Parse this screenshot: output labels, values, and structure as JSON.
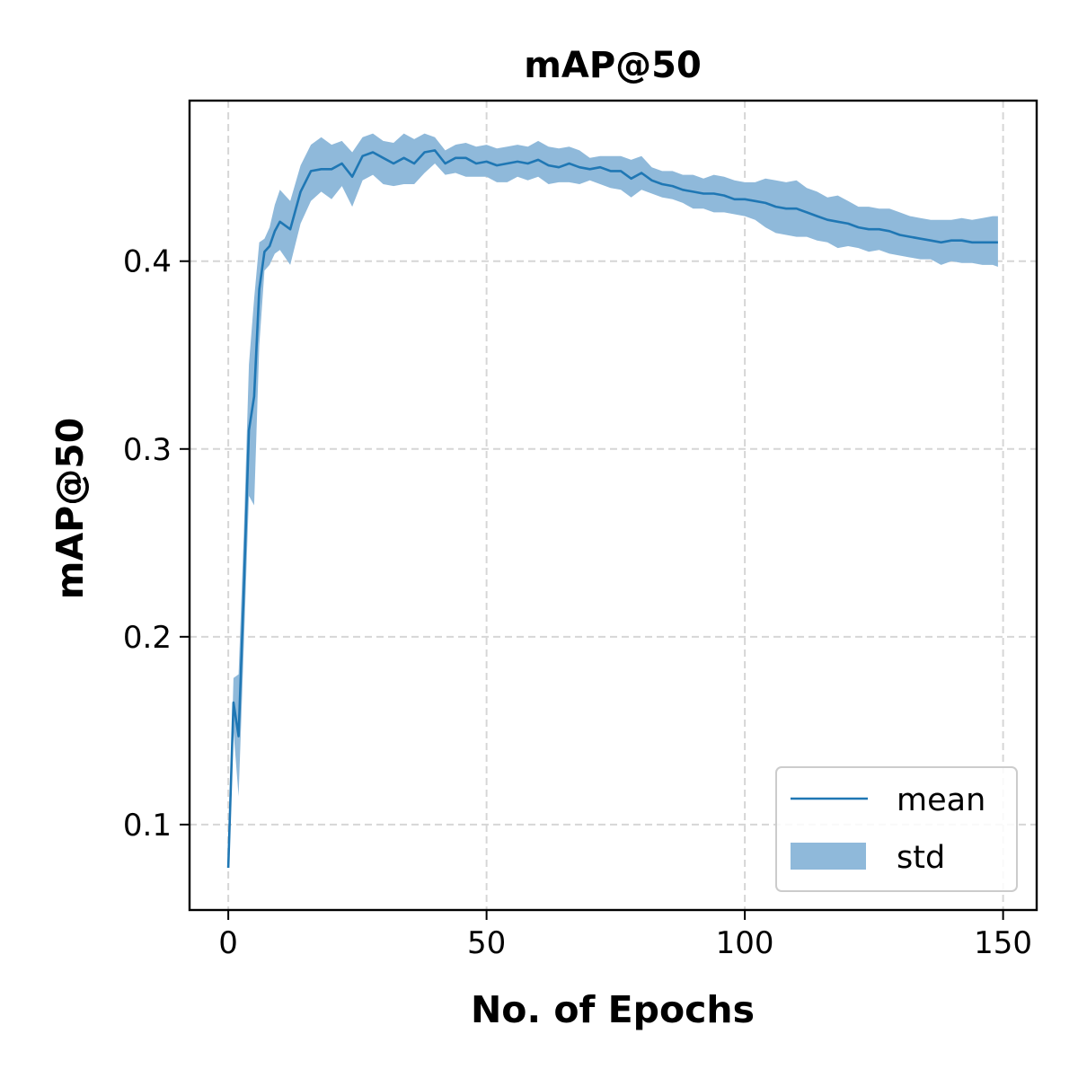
{
  "chart_data": {
    "type": "line",
    "title": "mAP@50",
    "xlabel": "No. of Epochs",
    "ylabel": "mAP@50",
    "xlim": [
      -7.5,
      156.5
    ],
    "ylim": [
      0.0545,
      0.4855
    ],
    "xticks": [
      0,
      50,
      100,
      150
    ],
    "xtick_labels": [
      "0",
      "50",
      "100",
      "150"
    ],
    "yticks": [
      0.1,
      0.2,
      0.3,
      0.4
    ],
    "ytick_labels": [
      "0.1",
      "0.2",
      "0.3",
      "0.4"
    ],
    "grid": true,
    "legend_position": "lower-right",
    "legend": [
      {
        "label": "mean",
        "kind": "line"
      },
      {
        "label": "std",
        "kind": "band"
      }
    ],
    "colors": {
      "mean": "#1f77b4",
      "std": "#8fb9da",
      "grid": "#d6d6d6"
    },
    "series": [
      {
        "name": "mean",
        "x": [
          0,
          1,
          2,
          3,
          4,
          5,
          6,
          7,
          8,
          9,
          10,
          12,
          14,
          16,
          18,
          20,
          22,
          24,
          26,
          28,
          30,
          32,
          34,
          36,
          38,
          40,
          42,
          44,
          46,
          48,
          50,
          52,
          54,
          56,
          58,
          60,
          62,
          64,
          66,
          68,
          70,
          72,
          74,
          76,
          78,
          80,
          82,
          84,
          86,
          88,
          90,
          92,
          94,
          96,
          98,
          100,
          102,
          104,
          106,
          108,
          110,
          112,
          114,
          116,
          118,
          120,
          122,
          124,
          126,
          128,
          130,
          132,
          134,
          136,
          138,
          140,
          142,
          144,
          146,
          148,
          149
        ],
        "y": [
          0.077,
          0.165,
          0.147,
          0.225,
          0.31,
          0.328,
          0.385,
          0.405,
          0.408,
          0.416,
          0.421,
          0.417,
          0.437,
          0.448,
          0.449,
          0.449,
          0.452,
          0.445,
          0.456,
          0.458,
          0.455,
          0.452,
          0.455,
          0.452,
          0.458,
          0.459,
          0.452,
          0.455,
          0.455,
          0.452,
          0.453,
          0.451,
          0.452,
          0.453,
          0.452,
          0.454,
          0.451,
          0.45,
          0.452,
          0.45,
          0.449,
          0.45,
          0.448,
          0.448,
          0.444,
          0.447,
          0.443,
          0.441,
          0.44,
          0.438,
          0.437,
          0.436,
          0.436,
          0.435,
          0.433,
          0.433,
          0.432,
          0.431,
          0.429,
          0.428,
          0.428,
          0.426,
          0.424,
          0.422,
          0.421,
          0.42,
          0.418,
          0.417,
          0.417,
          0.416,
          0.414,
          0.413,
          0.412,
          0.411,
          0.41,
          0.411,
          0.411,
          0.41,
          0.41,
          0.41,
          0.41
        ]
      },
      {
        "name": "std",
        "x": [
          0,
          1,
          2,
          3,
          4,
          5,
          6,
          7,
          8,
          9,
          10,
          12,
          14,
          16,
          18,
          20,
          22,
          24,
          26,
          28,
          30,
          32,
          34,
          36,
          38,
          40,
          42,
          44,
          46,
          48,
          50,
          52,
          54,
          56,
          58,
          60,
          62,
          64,
          66,
          68,
          70,
          72,
          74,
          76,
          78,
          80,
          82,
          84,
          86,
          88,
          90,
          92,
          94,
          96,
          98,
          100,
          102,
          104,
          106,
          108,
          110,
          112,
          114,
          116,
          118,
          120,
          122,
          124,
          126,
          128,
          130,
          132,
          134,
          136,
          138,
          140,
          142,
          144,
          146,
          148,
          149
        ],
        "lower": [
          0.076,
          0.15,
          0.115,
          0.195,
          0.275,
          0.27,
          0.355,
          0.395,
          0.398,
          0.404,
          0.406,
          0.398,
          0.42,
          0.432,
          0.437,
          0.433,
          0.44,
          0.429,
          0.443,
          0.446,
          0.441,
          0.44,
          0.441,
          0.441,
          0.447,
          0.452,
          0.446,
          0.447,
          0.445,
          0.445,
          0.445,
          0.442,
          0.442,
          0.445,
          0.443,
          0.445,
          0.441,
          0.442,
          0.442,
          0.441,
          0.443,
          0.441,
          0.439,
          0.438,
          0.434,
          0.438,
          0.436,
          0.434,
          0.433,
          0.431,
          0.428,
          0.428,
          0.426,
          0.426,
          0.425,
          0.424,
          0.422,
          0.418,
          0.415,
          0.414,
          0.413,
          0.413,
          0.411,
          0.41,
          0.407,
          0.408,
          0.407,
          0.405,
          0.406,
          0.404,
          0.403,
          0.402,
          0.401,
          0.401,
          0.398,
          0.4,
          0.399,
          0.399,
          0.398,
          0.398,
          0.397
        ]
      },
      {
        "name": "std_upper",
        "x": [
          0,
          1,
          2,
          3,
          4,
          5,
          6,
          7,
          8,
          9,
          10,
          12,
          14,
          16,
          18,
          20,
          22,
          24,
          26,
          28,
          30,
          32,
          34,
          36,
          38,
          40,
          42,
          44,
          46,
          48,
          50,
          52,
          54,
          56,
          58,
          60,
          62,
          64,
          66,
          68,
          70,
          72,
          74,
          76,
          78,
          80,
          82,
          84,
          86,
          88,
          90,
          92,
          94,
          96,
          98,
          100,
          102,
          104,
          106,
          108,
          110,
          112,
          114,
          116,
          118,
          120,
          122,
          124,
          126,
          128,
          130,
          132,
          134,
          136,
          138,
          140,
          142,
          144,
          146,
          148,
          149
        ],
        "upper": [
          0.078,
          0.178,
          0.18,
          0.255,
          0.345,
          0.38,
          0.41,
          0.412,
          0.418,
          0.43,
          0.438,
          0.432,
          0.451,
          0.462,
          0.466,
          0.462,
          0.464,
          0.458,
          0.466,
          0.468,
          0.464,
          0.463,
          0.468,
          0.465,
          0.468,
          0.466,
          0.459,
          0.462,
          0.463,
          0.461,
          0.462,
          0.46,
          0.461,
          0.462,
          0.461,
          0.464,
          0.461,
          0.46,
          0.461,
          0.459,
          0.455,
          0.456,
          0.456,
          0.456,
          0.454,
          0.456,
          0.45,
          0.448,
          0.448,
          0.446,
          0.446,
          0.444,
          0.446,
          0.445,
          0.443,
          0.442,
          0.442,
          0.444,
          0.443,
          0.442,
          0.443,
          0.439,
          0.437,
          0.434,
          0.435,
          0.432,
          0.429,
          0.429,
          0.428,
          0.428,
          0.426,
          0.424,
          0.423,
          0.422,
          0.422,
          0.422,
          0.423,
          0.422,
          0.423,
          0.424,
          0.424
        ]
      }
    ]
  }
}
